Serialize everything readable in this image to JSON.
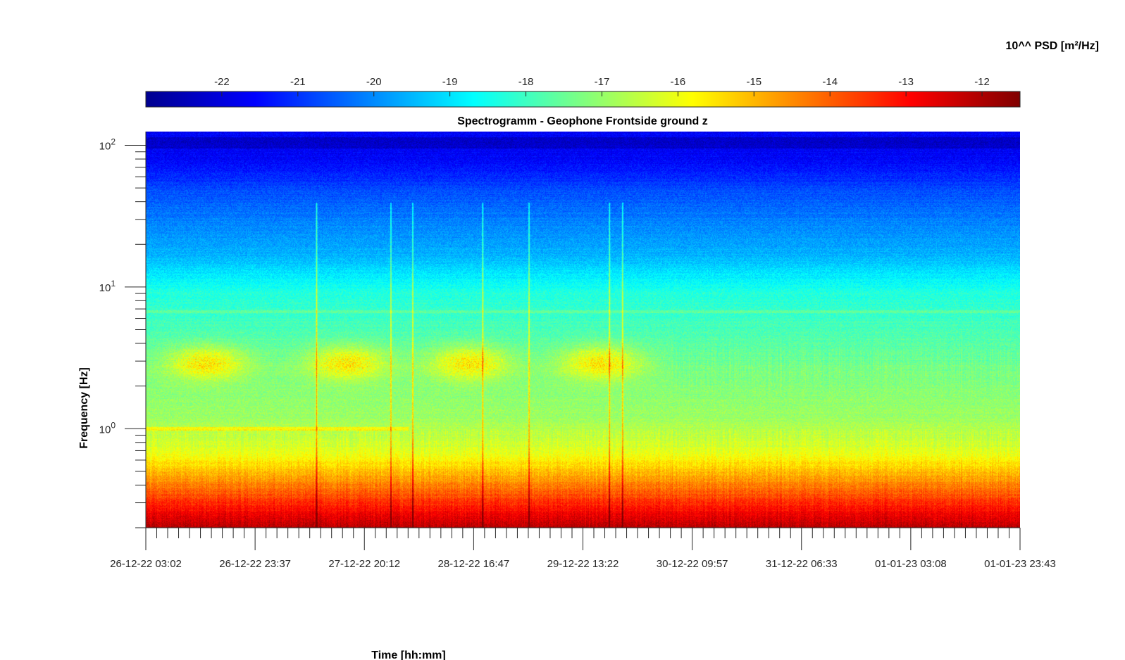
{
  "chart_data": {
    "type": "heatmap",
    "title": "Spectrogramm - Geophone Frontside ground z",
    "xlabel": "Time [hh:mm]",
    "ylabel": "Frequency [Hz]",
    "y_scale": "log",
    "y_range": [
      0.2,
      125
    ],
    "y_ticks": [
      {
        "value": 1,
        "base": "10",
        "exp": "0"
      },
      {
        "value": 10,
        "base": "10",
        "exp": "1"
      },
      {
        "value": 100,
        "base": "10",
        "exp": "2"
      }
    ],
    "x_tick_labels": [
      "26-12-22 03:02",
      "26-12-22 23:37",
      "27-12-22 20:12",
      "28-12-22 16:47",
      "29-12-22 13:22",
      "30-12-22 09:57",
      "31-12-22 06:33",
      "01-01-23 03:08",
      "01-01-23 23:43"
    ],
    "colorbar": {
      "label": "10^^ PSD [m²/Hz]",
      "range": [
        -23,
        -11.5
      ],
      "tick_labels": [
        "-22",
        "-21",
        "-20",
        "-19",
        "-18",
        "-17",
        "-16",
        "-15",
        "-14",
        "-13",
        "-12"
      ],
      "colormap": "jet"
    },
    "features": {
      "band_3hz_bursts": [
        0.07,
        0.23,
        0.37,
        0.52
      ],
      "transients": [
        0.195,
        0.28,
        0.305,
        0.385,
        0.438,
        0.53,
        0.545
      ],
      "persistent_line_hz": 1.0,
      "persistent_line_hz_2": 6.7
    }
  }
}
